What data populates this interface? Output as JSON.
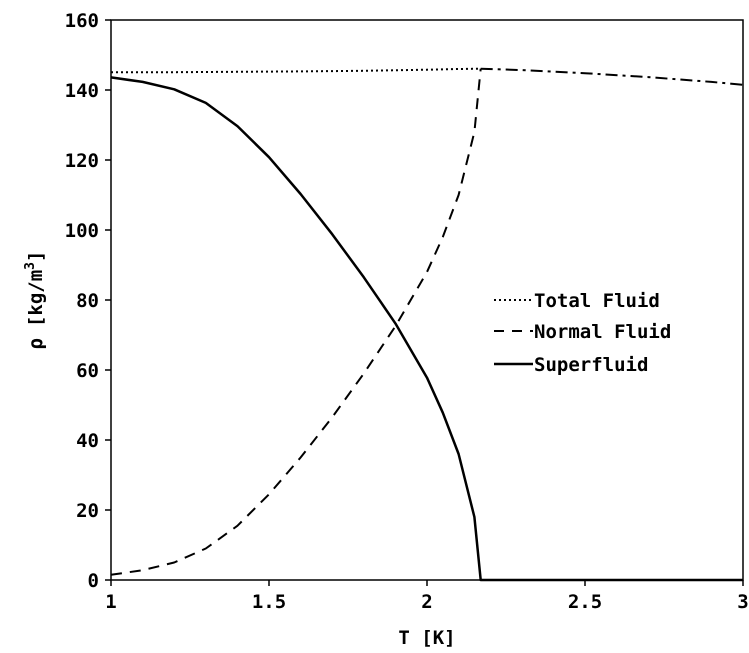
{
  "chart_data": {
    "type": "line",
    "title": "",
    "xlabel": "T [K]",
    "ylabel_symbol": "ρ",
    "ylabel_unit": "[kg/m",
    "ylabel_exp": "3",
    "ylabel_close": "]",
    "xlim": [
      1,
      3
    ],
    "ylim": [
      0,
      160
    ],
    "x_ticks": [
      1,
      1.5,
      2,
      2.5,
      3
    ],
    "x_tick_labels": [
      "1",
      "1.5",
      "2",
      "2.5",
      "3"
    ],
    "y_ticks": [
      0,
      20,
      40,
      60,
      80,
      100,
      120,
      140,
      160
    ],
    "y_tick_labels": [
      "0",
      "20",
      "40",
      "60",
      "80",
      "100",
      "120",
      "140",
      "160"
    ],
    "grid": false,
    "legend_position": "right",
    "series": [
      {
        "name": "Total Fluid",
        "dash": "dotted",
        "x": [
          1.0,
          1.2,
          1.4,
          1.6,
          1.8,
          2.0,
          2.1,
          2.17
        ],
        "y": [
          145.1,
          145.1,
          145.2,
          145.3,
          145.5,
          145.8,
          146.0,
          146.1
        ]
      },
      {
        "name": "Normal Fluid",
        "dash": "dashed",
        "x": [
          1.0,
          1.1,
          1.2,
          1.3,
          1.4,
          1.5,
          1.6,
          1.7,
          1.8,
          1.9,
          2.0,
          2.05,
          2.1,
          2.15,
          2.17
        ],
        "y": [
          1.5,
          2.8,
          5.0,
          9.0,
          15.5,
          24.5,
          35.0,
          46.5,
          59.0,
          72.5,
          88.0,
          98.0,
          110.0,
          128.0,
          146.1
        ]
      },
      {
        "name": "Superfluid",
        "dash": "solid",
        "x": [
          1.0,
          1.1,
          1.2,
          1.3,
          1.4,
          1.5,
          1.6,
          1.7,
          1.8,
          1.9,
          2.0,
          2.05,
          2.1,
          2.15,
          2.17,
          2.17,
          3.0
        ],
        "y": [
          143.6,
          142.3,
          140.2,
          136.3,
          129.7,
          120.8,
          110.3,
          98.8,
          86.5,
          73.3,
          57.8,
          47.8,
          36.0,
          18.0,
          0.0,
          0.0,
          0.0
        ]
      },
      {
        "name": "",
        "dash": "dash-dot",
        "x": [
          2.17,
          2.3,
          2.5,
          2.7,
          2.9,
          3.0
        ],
        "y": [
          146.1,
          145.7,
          144.8,
          143.7,
          142.3,
          141.5
        ]
      }
    ]
  }
}
